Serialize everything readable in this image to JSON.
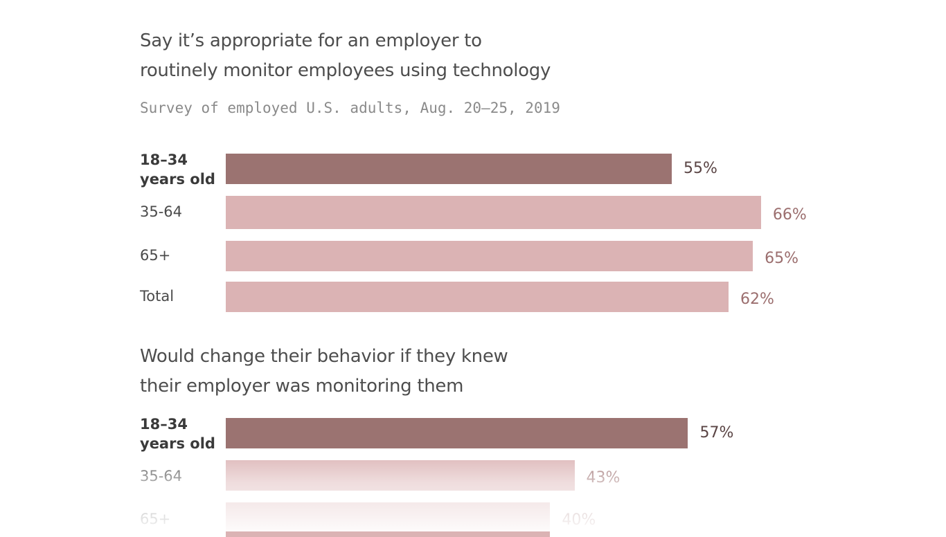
{
  "colors": {
    "highlight": "#9b7371",
    "normal": "#dbb3b4",
    "highlight_text": "#5a4444",
    "normal_text": "#9b6e6e"
  },
  "chart_data": [
    {
      "type": "bar",
      "orientation": "horizontal",
      "title": "Say it’s appropriate for an employer to routinely monitor employees using technology",
      "title_lines": [
        "Say it’s appropriate for an employer to",
        "routinely monitor employees using technology"
      ],
      "subtitle": "Survey of employed U.S. adults, Aug. 20–25, 2019",
      "categories": [
        "18–34 years old",
        "35-64",
        "65+",
        "Total"
      ],
      "category_lines": [
        [
          "18–34",
          "years old"
        ],
        [
          "35-64"
        ],
        [
          "65+"
        ],
        [
          "Total"
        ]
      ],
      "values": [
        55,
        66,
        65,
        62
      ],
      "value_labels": [
        "55%",
        "66%",
        "65%",
        "62%"
      ],
      "highlight_index": 0,
      "xlim": [
        0,
        100
      ],
      "grid": false
    },
    {
      "type": "bar",
      "orientation": "horizontal",
      "title": "Would change their behavior if they knew their employer was monitoring them",
      "title_lines": [
        "Would change their behavior if they knew",
        "their employer was monitoring them"
      ],
      "categories": [
        "18–34 years old",
        "35-64",
        "65+"
      ],
      "category_lines": [
        [
          "18–34",
          "years old"
        ],
        [
          "35-64"
        ],
        [
          "65+"
        ]
      ],
      "values": [
        57,
        43,
        40
      ],
      "value_labels": [
        "57%",
        "43%",
        "40%"
      ],
      "highlight_index": 0,
      "xlim": [
        0,
        100
      ],
      "grid": false
    }
  ]
}
